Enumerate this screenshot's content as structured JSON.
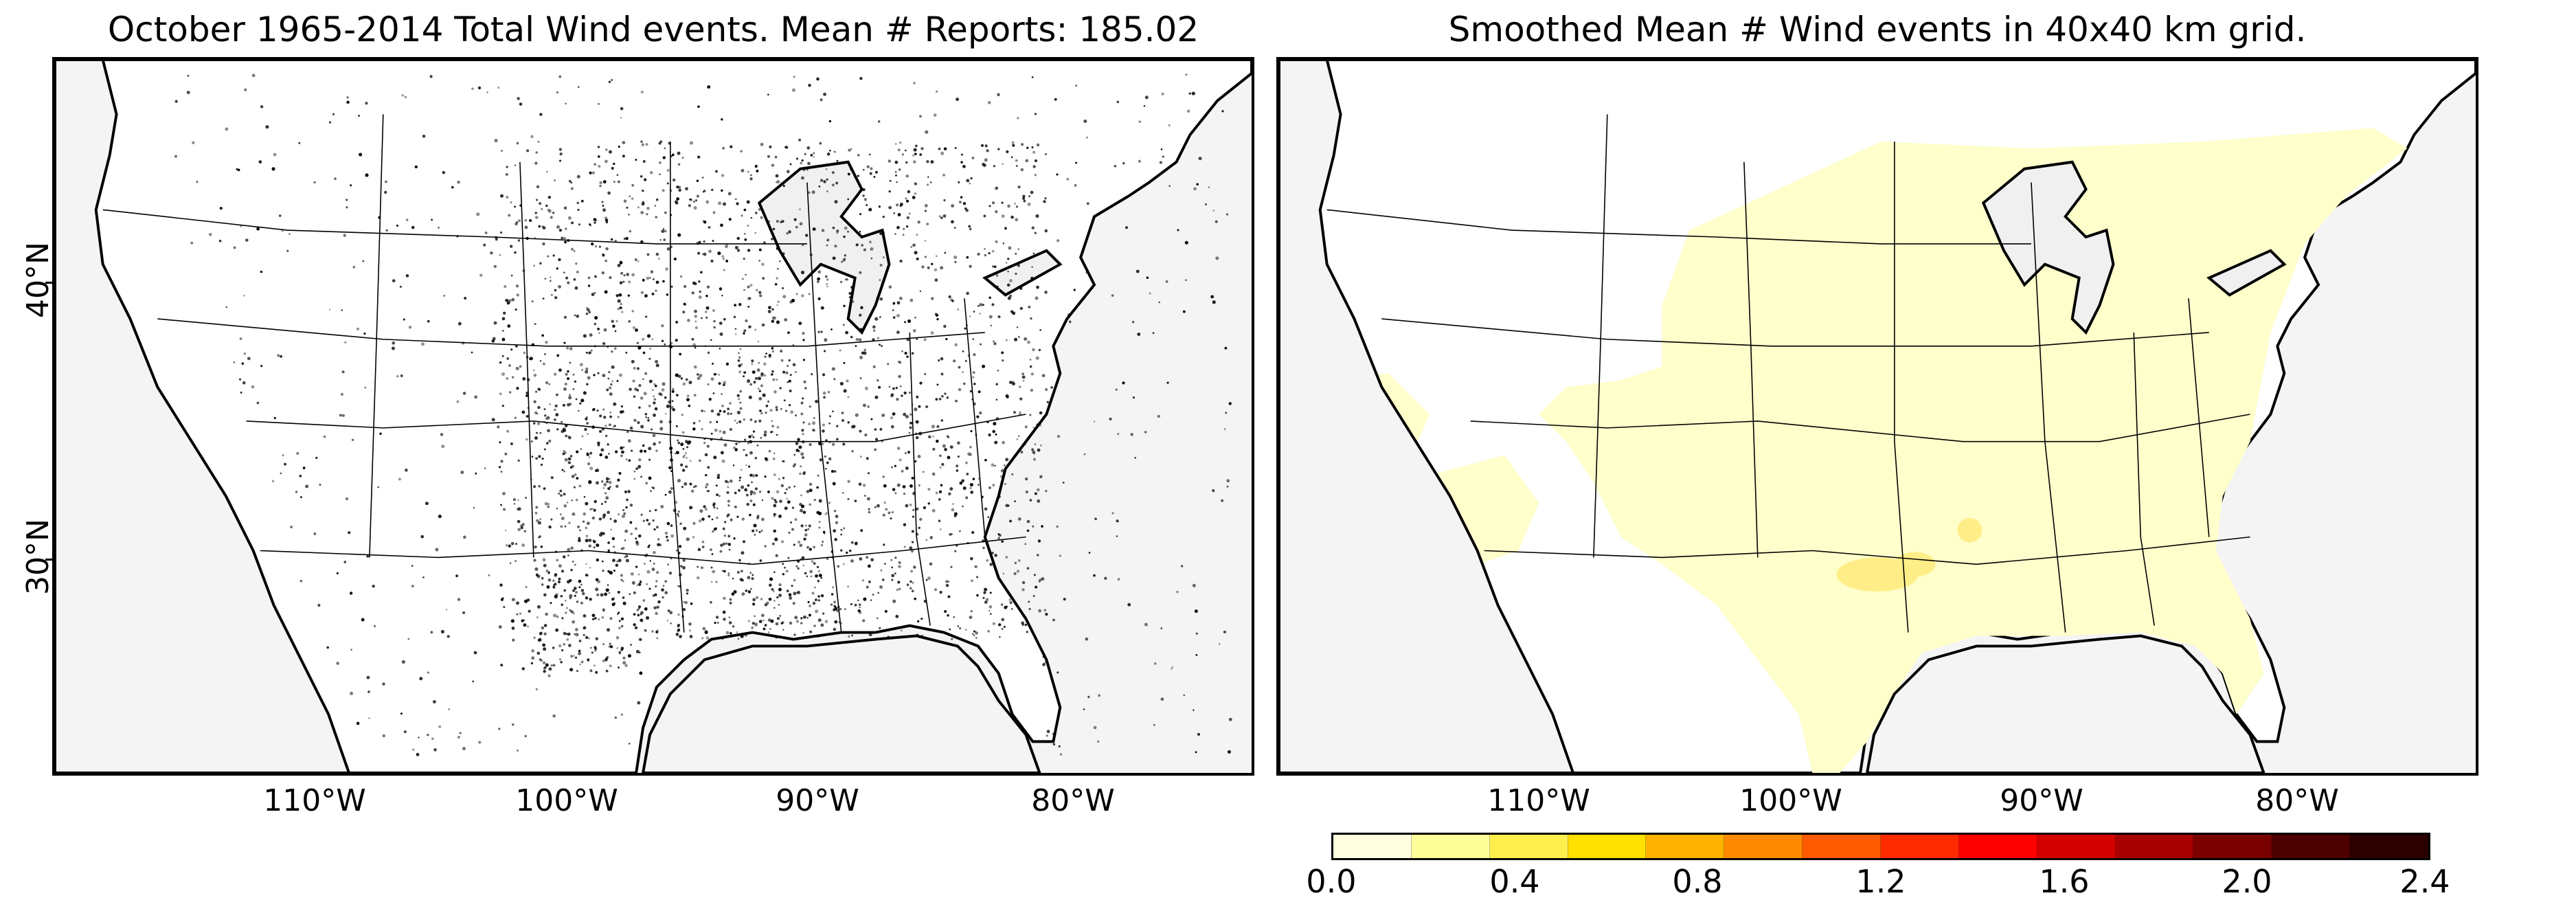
{
  "left_panel": {
    "title": "October 1965-2014 Total Wind events. Mean # Reports: 185.02"
  },
  "right_panel": {
    "title": "Smoothed Mean # Wind events in 40x40 km grid."
  },
  "axes": {
    "x_ticks": [
      "110°W",
      "100°W",
      "90°W",
      "80°W"
    ],
    "y_ticks": [
      "40°N",
      "30°N"
    ]
  },
  "colorbar": {
    "tick_labels": [
      "0.0",
      "0.4",
      "0.8",
      "1.2",
      "1.6",
      "2.0",
      "2.4"
    ],
    "colors": [
      "#ffffe0",
      "#ffff99",
      "#ffef4d",
      "#ffe000",
      "#ffb300",
      "#ff8a00",
      "#ff5a00",
      "#ff2a00",
      "#ff0000",
      "#d40000",
      "#a80000",
      "#7a0000",
      "#4d0000",
      "#2a0000"
    ]
  },
  "map_colors": {
    "land": "#ffffff",
    "water": "#f4f4f4",
    "smoothed_fill": "#ffffcc",
    "smoothed_peak": "#ffee66",
    "dots": "#000000"
  }
}
